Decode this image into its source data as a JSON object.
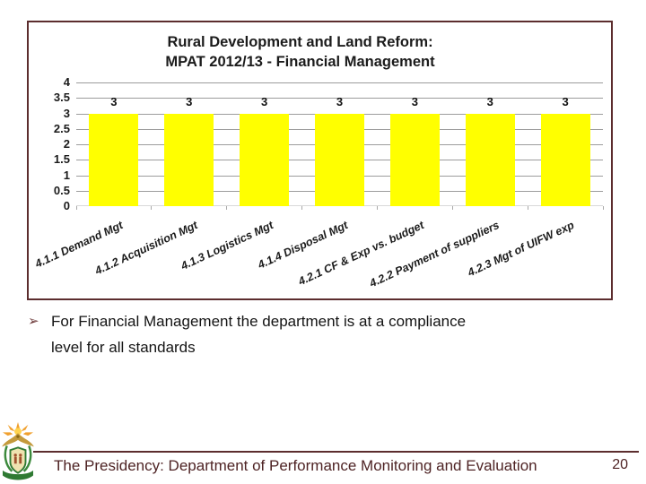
{
  "slide": {
    "chart": {
      "title_line1": "Rural Development and Land Reform:",
      "title_line2": "MPAT 2012/13 - Financial Management"
    },
    "bullet": {
      "marker": "➢",
      "lines": [
        "For Financial Management the department is at a compliance",
        "level for all standards"
      ]
    },
    "footer": {
      "text": "The Presidency: Department of Performance Monitoring and Evaluation",
      "page_number": "20",
      "logo": "south-african-coat-of-arms"
    },
    "colors": {
      "bar_fill": "#FFFF00",
      "frame_border": "#5C2D2E",
      "footer_text": "#4E2324",
      "gridline": "#9C9C9C"
    }
  },
  "chart_data": {
    "type": "bar",
    "title": "Rural Development and Land Reform: MPAT 2012/13 - Financial Management",
    "categories": [
      "4.1.1 Demand Mgt",
      "4.1.2 Acquisition Mgt",
      "4.1.3 Logistics Mgt",
      "4.1.4 Disposal Mgt",
      "4.2.1 CF & Exp vs. budget",
      "4.2.2 Payment of suppliers",
      "4.2.3 Mgt of UIFW exp"
    ],
    "values": [
      3,
      3,
      3,
      3,
      3,
      3,
      3
    ],
    "data_labels": [
      "3",
      "3",
      "3",
      "3",
      "3",
      "3",
      "3"
    ],
    "bar_color": "#FFFF00",
    "ylim": [
      0,
      4
    ],
    "ytick_step": 0.5,
    "yticks": [
      "4",
      "3.5",
      "3",
      "2.5",
      "2",
      "1.5",
      "1",
      "0.5",
      "0"
    ],
    "grid": true,
    "xlabel_rotation_deg": -25,
    "legend": "none"
  }
}
